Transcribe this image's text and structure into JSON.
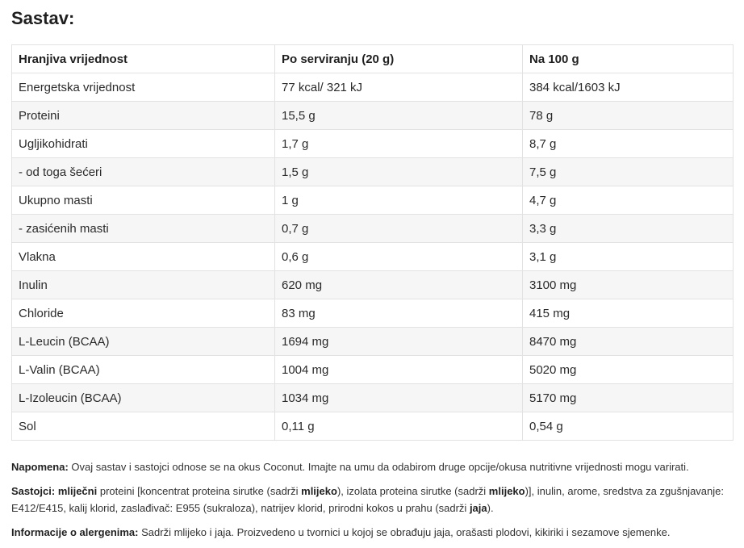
{
  "title": "Sastav:",
  "table": {
    "headers": [
      "Hranjiva vrijednost",
      "Po serviranju (20 g)",
      "Na 100 g"
    ],
    "rows": [
      [
        "Energetska vrijednost",
        "77 kcal/ 321 kJ",
        "384 kcal/1603 kJ"
      ],
      [
        "Proteini",
        "15,5 g",
        "78 g"
      ],
      [
        "Ugljikohidrati",
        "1,7 g",
        "8,7 g"
      ],
      [
        "- od toga šećeri",
        "1,5 g",
        "7,5 g"
      ],
      [
        "Ukupno masti",
        "1 g",
        "4,7 g"
      ],
      [
        "- zasićenih masti",
        "0,7 g",
        "3,3 g"
      ],
      [
        "Vlakna",
        "0,6 g",
        "3,1 g"
      ],
      [
        "Inulin",
        "620 mg",
        "3100 mg"
      ],
      [
        "Chloride",
        "83 mg",
        "415 mg"
      ],
      [
        "L-Leucin (BCAA)",
        "1694 mg",
        "8470 mg"
      ],
      [
        "L-Valin (BCAA)",
        "1004 mg",
        "5020 mg"
      ],
      [
        "L-Izoleucin (BCAA)",
        "1034 mg",
        "5170 mg"
      ],
      [
        "Sol",
        "0,11 g",
        "0,54 g"
      ]
    ]
  },
  "notes": {
    "napomena_label": "Napomena:",
    "napomena_text": " Ovaj sastav i sastojci odnose se na okus Coconut. Imajte na umu da odabirom druge opcije/okusa nutritivne vrijednosti mogu varirati.",
    "sastojci": {
      "label": "Sastojci:",
      "t1": "mliječni",
      "t2": " proteini [koncentrat proteina sirutke (sadrži ",
      "t3": "mlijeko",
      "t4": "), izolata proteina sirutke (sadrži ",
      "t5": "mlijeko",
      "t6": ")], inulin, arome, sredstva za zgušnjavanje: E412/E415, kalij klorid, zaslađivač: E955 (sukraloza), natrijev klorid, prirodni kokos u prahu (sadrži ",
      "t7": "jaja",
      "t8": ")."
    },
    "alergeni_label": "Informacije o alergenima:",
    "alergeni_text": " Sadrži mlijeko i jaja. Proizvedeno u tvornici u kojoj se obrađuju jaja, orašasti plodovi, kikiriki i sezamove sjemenke."
  }
}
